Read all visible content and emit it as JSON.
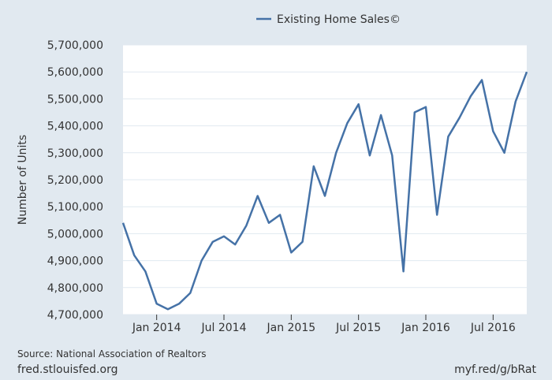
{
  "chart_data": {
    "type": "line",
    "legend_position": "top-center",
    "grid": true,
    "ylabel": "Number of Units",
    "series": [
      {
        "name": "Existing Home Sales©",
        "color": "#4572a7",
        "x": [
          "2013-10",
          "2013-11",
          "2013-12",
          "2014-01",
          "2014-02",
          "2014-03",
          "2014-04",
          "2014-05",
          "2014-06",
          "2014-07",
          "2014-08",
          "2014-09",
          "2014-10",
          "2014-11",
          "2014-12",
          "2015-01",
          "2015-02",
          "2015-03",
          "2015-04",
          "2015-05",
          "2015-06",
          "2015-07",
          "2015-08",
          "2015-09",
          "2015-10",
          "2015-11",
          "2015-12",
          "2016-01",
          "2016-02",
          "2016-03",
          "2016-04",
          "2016-05",
          "2016-06",
          "2016-07",
          "2016-08",
          "2016-09",
          "2016-10"
        ],
        "values": [
          5040000,
          4920000,
          4860000,
          4740000,
          4720000,
          4740000,
          4780000,
          4900000,
          4970000,
          4990000,
          4960000,
          5030000,
          5140000,
          5040000,
          5070000,
          4930000,
          4970000,
          5250000,
          5140000,
          5300000,
          5410000,
          5480000,
          5290000,
          5440000,
          5290000,
          4860000,
          5450000,
          5470000,
          5070000,
          5360000,
          5430000,
          5510000,
          5570000,
          5380000,
          5300000,
          5490000,
          5600000
        ]
      }
    ],
    "ylim": [
      4700000,
      5700000
    ],
    "yticks": [
      4700000,
      4800000,
      4900000,
      5000000,
      5100000,
      5200000,
      5300000,
      5400000,
      5500000,
      5600000,
      5700000
    ],
    "ytick_labels": [
      "4,700,000",
      "4,800,000",
      "4,900,000",
      "5,000,000",
      "5,100,000",
      "5,200,000",
      "5,300,000",
      "5,400,000",
      "5,500,000",
      "5,600,000",
      "5,700,000"
    ],
    "xticks": [
      {
        "x": "2014-01",
        "label": "Jan 2014"
      },
      {
        "x": "2014-07",
        "label": "Jul 2014"
      },
      {
        "x": "2015-01",
        "label": "Jan 2015"
      },
      {
        "x": "2015-07",
        "label": "Jul 2015"
      },
      {
        "x": "2016-01",
        "label": "Jan 2016"
      },
      {
        "x": "2016-07",
        "label": "Jul 2016"
      }
    ]
  },
  "source_text": "Source: National Association of Realtors",
  "footer": {
    "left": "fred.stlouisfed.org",
    "right": "myf.red/g/bRat"
  }
}
